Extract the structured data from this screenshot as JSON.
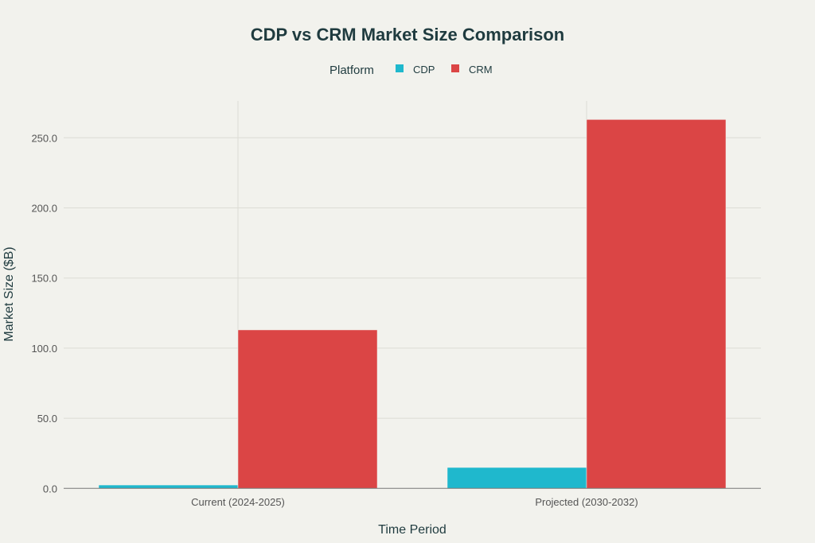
{
  "chart_data": {
    "type": "bar",
    "title": "CDP vs CRM Market Size Comparison",
    "xlabel": "Time Period",
    "ylabel": "Market Size ($B)",
    "categories": [
      "Current (2024-2025)",
      "Projected (2030-2032)"
    ],
    "series": [
      {
        "name": "CDP",
        "color": "#1fb8cd",
        "values": [
          2.4,
          14.9
        ]
      },
      {
        "name": "CRM",
        "color": "#db4545",
        "values": [
          113.0,
          263.0
        ]
      }
    ],
    "ylim": [
      0,
      277
    ],
    "yticks": [
      0,
      50,
      100,
      150,
      200,
      250
    ],
    "ytick_labels": [
      "0.0",
      "50.0",
      "100.0",
      "150.0",
      "200.0",
      "250.0"
    ],
    "legend": {
      "title": "Platform",
      "placement": "top-center"
    },
    "grid": true
  }
}
